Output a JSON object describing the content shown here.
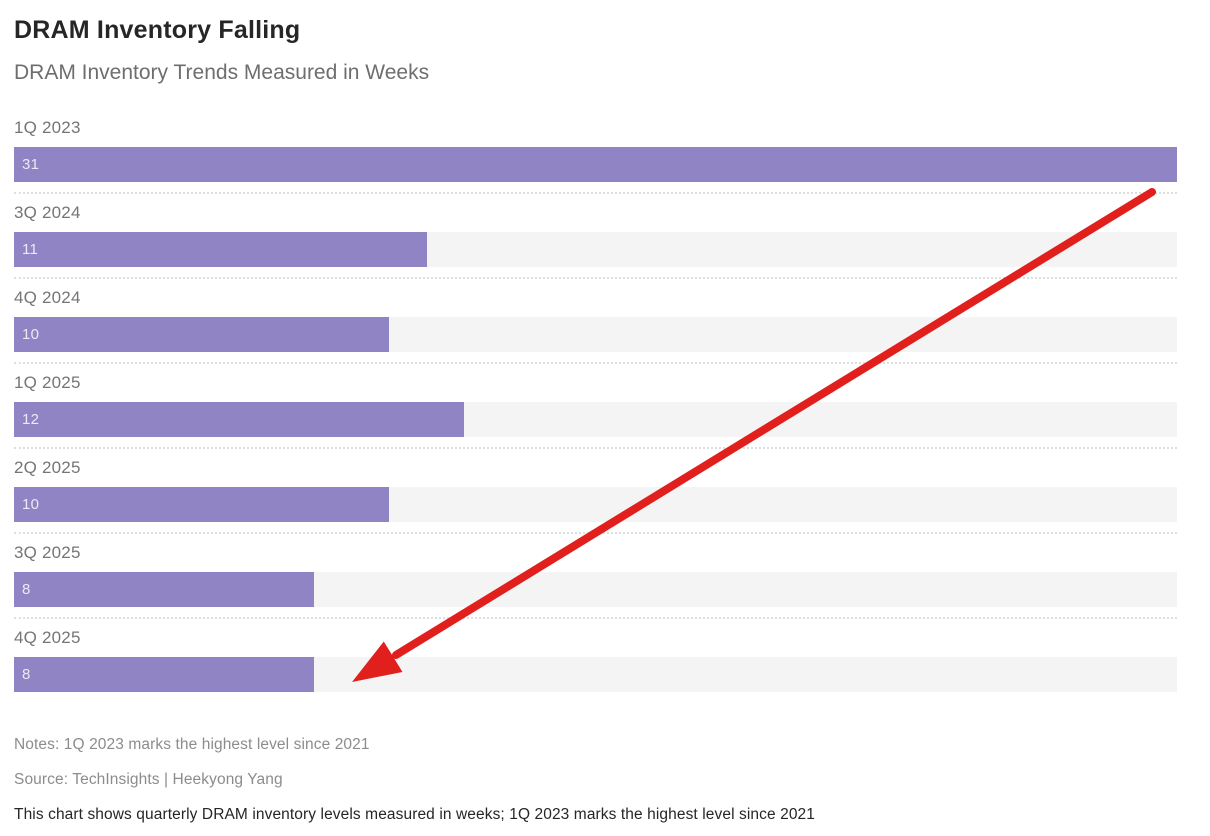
{
  "header": {
    "title": "DRAM Inventory Falling",
    "subtitle": "DRAM Inventory Trends Measured in Weeks"
  },
  "chart_data": {
    "type": "bar",
    "orientation": "horizontal",
    "title": "DRAM Inventory Falling",
    "subtitle": "DRAM Inventory Trends Measured in Weeks",
    "unit": "weeks",
    "categories": [
      "1Q 2023",
      "3Q 2024",
      "4Q 2024",
      "1Q 2025",
      "2Q 2025",
      "3Q 2025",
      "4Q 2025"
    ],
    "values": [
      31,
      11,
      10,
      12,
      10,
      8,
      8
    ],
    "xlim": [
      0,
      31
    ],
    "value_labels_shown": true,
    "grid": false,
    "legend": false,
    "colors": {
      "bar": "#9184c5",
      "track": "#f4f4f4",
      "value_text": "rgba(255,255,255,0.82)",
      "category_text": "#757575",
      "separator": "#dedede"
    },
    "annotation": {
      "type": "arrow",
      "meaning": "declining trend from 1Q 2023 to 4Q 2025",
      "color": "#e1201e",
      "from_xy": [
        1152,
        192
      ],
      "to_xy": [
        352,
        682
      ]
    }
  },
  "footer": {
    "notes": "Notes: 1Q 2023 marks the highest level since 2021",
    "source": "Source: TechInsights | Heekyong Yang",
    "caption": "This chart shows quarterly DRAM inventory levels measured in weeks; 1Q 2023 marks the highest level since 2021"
  }
}
